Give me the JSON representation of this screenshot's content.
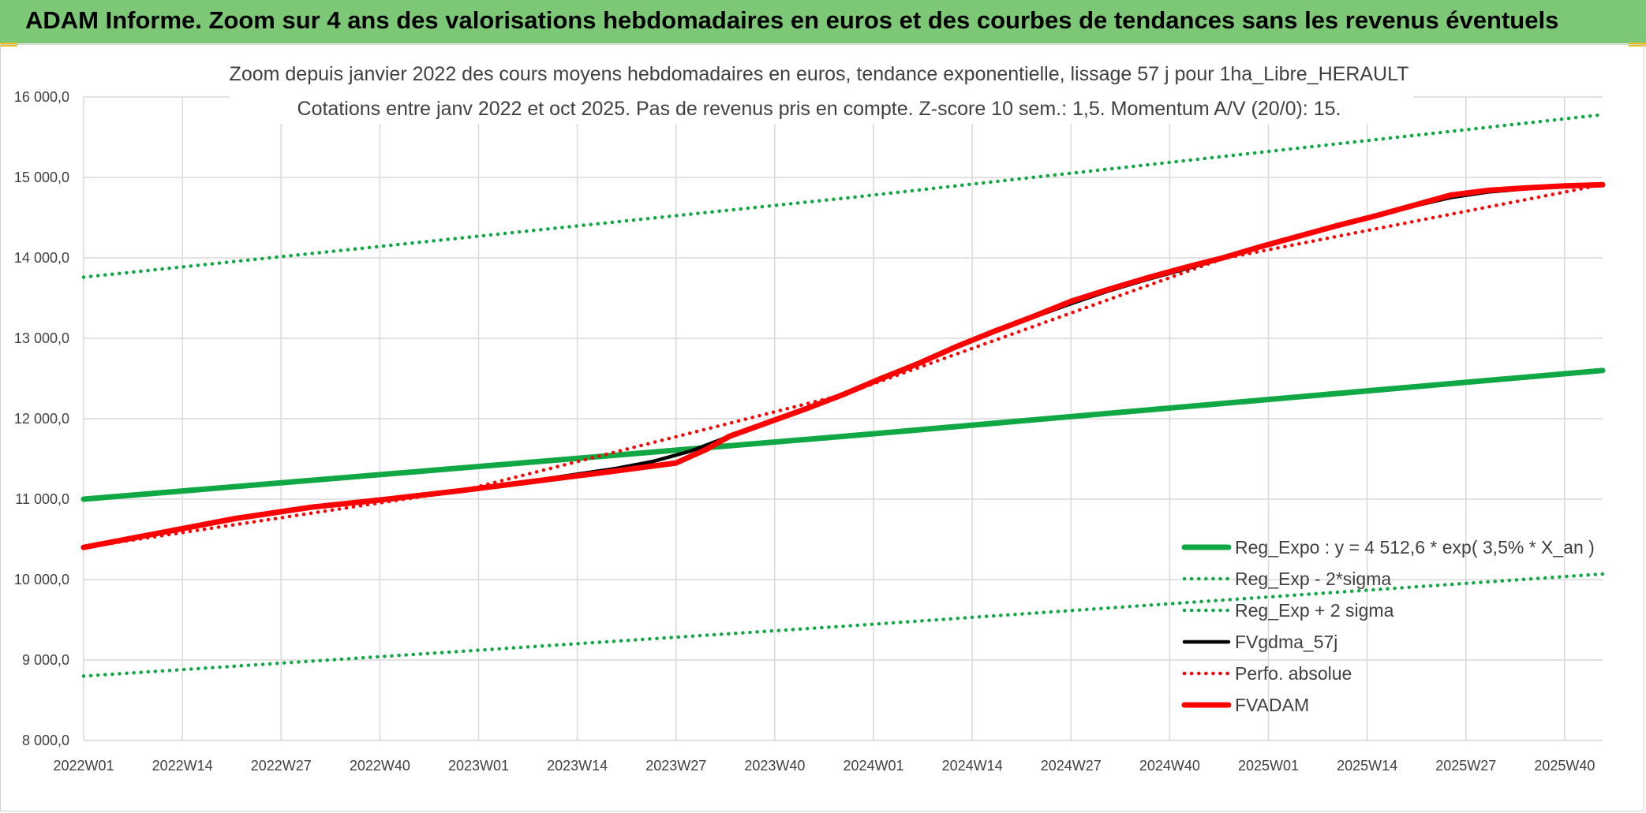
{
  "header": {
    "title": "ADAM Informe. Zoom sur 4 ans des valorisations hebdomadaires en euros et des courbes de tendances sans les revenus éventuels"
  },
  "colors": {
    "header_bg": "#7dc876",
    "green": "#10a845",
    "black": "#000000",
    "red": "#ff0000",
    "grid": "#d9d9d9",
    "text": "#404040"
  },
  "chart_data": {
    "type": "line",
    "title": "Zoom depuis janvier 2022 des cours moyens hebdomadaires en euros, tendance exponentielle, lissage 57 j pour 1ha_Libre_HERAULT",
    "subtitle": "Cotations entre janv 2022 et oct 2025. Pas de revenus pris en compte. Z-score 10 sem.: 1,5. Momentum A/V (20/0): 15.",
    "xlabel": "",
    "ylabel": "",
    "ylim": [
      8000,
      16000
    ],
    "yticks": [
      "8 000,0",
      "9 000,0",
      "10 000,0",
      "11 000,0",
      "12 000,0",
      "13 000,0",
      "14 000,0",
      "15 000,0",
      "16 000,0"
    ],
    "xlim": [
      0,
      200
    ],
    "xticks": [
      {
        "label": "2022W01",
        "x": 0
      },
      {
        "label": "2022W14",
        "x": 13
      },
      {
        "label": "2022W27",
        "x": 26
      },
      {
        "label": "2022W40",
        "x": 39
      },
      {
        "label": "2023W01",
        "x": 52
      },
      {
        "label": "2023W14",
        "x": 65
      },
      {
        "label": "2023W27",
        "x": 78
      },
      {
        "label": "2023W40",
        "x": 91
      },
      {
        "label": "2024W01",
        "x": 104
      },
      {
        "label": "2024W14",
        "x": 117
      },
      {
        "label": "2024W27",
        "x": 130
      },
      {
        "label": "2024W40",
        "x": 143
      },
      {
        "label": "2025W01",
        "x": 156
      },
      {
        "label": "2025W14",
        "x": 169
      },
      {
        "label": "2025W27",
        "x": 182
      },
      {
        "label": "2025W40",
        "x": 195
      }
    ],
    "grid": true,
    "legend_position": "bottom-right",
    "series": [
      {
        "name": "Reg_Expo : y = 4 512,6 * exp( 3,5% *  X_an )",
        "style": "solid-thick",
        "color": "#10a845",
        "points": [
          [
            0,
            11000
          ],
          [
            100,
            11780
          ],
          [
            200,
            12600
          ]
        ]
      },
      {
        "name": "Reg_Exp - 2*sigma",
        "style": "dotted",
        "color": "#10a845",
        "points": [
          [
            0,
            8800
          ],
          [
            100,
            9420
          ],
          [
            200,
            10070
          ]
        ]
      },
      {
        "name": "Reg_Exp + 2 sigma",
        "style": "dotted",
        "color": "#10a845",
        "points": [
          [
            0,
            13760
          ],
          [
            100,
            14740
          ],
          [
            200,
            15780
          ]
        ]
      },
      {
        "name": "FVgdma_57j",
        "style": "solid",
        "color": "#000000",
        "points": [
          [
            0,
            10400
          ],
          [
            10,
            10580
          ],
          [
            20,
            10760
          ],
          [
            30,
            10900
          ],
          [
            40,
            11000
          ],
          [
            50,
            11110
          ],
          [
            60,
            11240
          ],
          [
            70,
            11380
          ],
          [
            75,
            11470
          ],
          [
            80,
            11600
          ],
          [
            85,
            11780
          ],
          [
            90,
            11950
          ],
          [
            95,
            12120
          ],
          [
            100,
            12300
          ],
          [
            105,
            12500
          ],
          [
            110,
            12690
          ],
          [
            115,
            12900
          ],
          [
            120,
            13090
          ],
          [
            125,
            13260
          ],
          [
            130,
            13430
          ],
          [
            135,
            13590
          ],
          [
            140,
            13730
          ],
          [
            145,
            13860
          ],
          [
            150,
            13990
          ],
          [
            155,
            14130
          ],
          [
            160,
            14260
          ],
          [
            165,
            14390
          ],
          [
            170,
            14520
          ],
          [
            175,
            14640
          ],
          [
            180,
            14750
          ],
          [
            185,
            14820
          ],
          [
            190,
            14860
          ],
          [
            195,
            14890
          ],
          [
            200,
            14900
          ]
        ]
      },
      {
        "name": "Perfo. absolue",
        "style": "dotted",
        "color": "#ff0000",
        "points": [
          [
            0,
            10400
          ],
          [
            50,
            11110
          ],
          [
            100,
            12300
          ],
          [
            150,
            13990
          ],
          [
            200,
            14910
          ]
        ]
      },
      {
        "name": "FVADAM",
        "style": "solid-thick",
        "color": "#ff0000",
        "points": [
          [
            0,
            10400
          ],
          [
            10,
            10580
          ],
          [
            20,
            10760
          ],
          [
            30,
            10900
          ],
          [
            40,
            11000
          ],
          [
            50,
            11110
          ],
          [
            60,
            11230
          ],
          [
            70,
            11350
          ],
          [
            78,
            11450
          ],
          [
            82,
            11620
          ],
          [
            85,
            11780
          ],
          [
            90,
            11950
          ],
          [
            95,
            12120
          ],
          [
            100,
            12300
          ],
          [
            105,
            12500
          ],
          [
            110,
            12690
          ],
          [
            115,
            12900
          ],
          [
            120,
            13090
          ],
          [
            125,
            13270
          ],
          [
            130,
            13460
          ],
          [
            135,
            13610
          ],
          [
            140,
            13750
          ],
          [
            145,
            13880
          ],
          [
            150,
            14000
          ],
          [
            155,
            14140
          ],
          [
            160,
            14270
          ],
          [
            165,
            14400
          ],
          [
            170,
            14520
          ],
          [
            175,
            14650
          ],
          [
            180,
            14780
          ],
          [
            185,
            14840
          ],
          [
            190,
            14870
          ],
          [
            195,
            14895
          ],
          [
            200,
            14910
          ]
        ]
      }
    ]
  }
}
